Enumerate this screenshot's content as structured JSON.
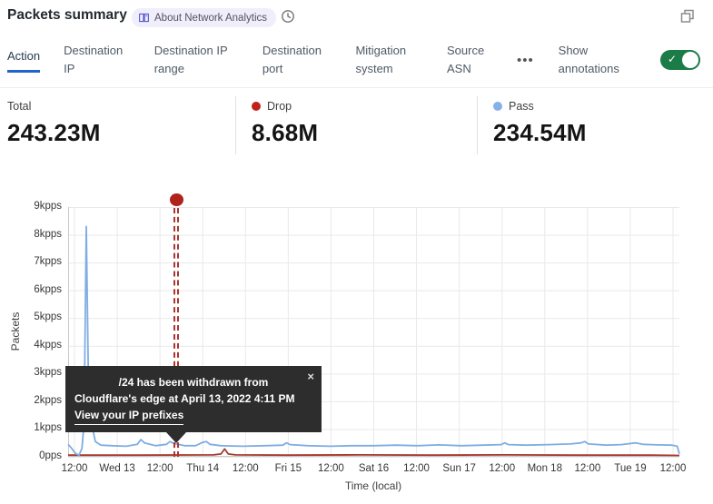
{
  "header": {
    "title": "Packets summary",
    "about_badge_label": "About Network Analytics"
  },
  "tabs": {
    "items": [
      {
        "label": "Action",
        "active": true
      },
      {
        "label": "Destination IP",
        "active": false
      },
      {
        "label": "Destination IP range",
        "active": false
      },
      {
        "label": "Destination port",
        "active": false
      },
      {
        "label": "Mitigation system",
        "active": false
      },
      {
        "label": "Source ASN",
        "active": false
      }
    ],
    "overflow_label": "•••",
    "show_annotations_label": "Show annotations",
    "annotations_toggle_on": true,
    "toggle_color": "#1b7c47",
    "active_underline_color": "#2063c9"
  },
  "stats": [
    {
      "label": "Total",
      "value": "243.23M",
      "color": null
    },
    {
      "label": "Drop",
      "value": "8.68M",
      "color": "#c0211c"
    },
    {
      "label": "Pass",
      "value": "234.54M",
      "color": "#85b1e8"
    }
  ],
  "annotation_tooltip": {
    "line1": "/24 has been withdrawn from",
    "line2": "Cloudflare's edge at April 13, 2022 4:11 PM",
    "link_label": "View your IP prefixes",
    "close_glyph": "×"
  },
  "chart_data": {
    "type": "line",
    "title": "Packets summary",
    "xlabel": "Time (local)",
    "ylabel": "Packets",
    "unit": "kpps",
    "ylim": [
      0,
      9
    ],
    "y_tick_labels": [
      "9kpps",
      "8kpps",
      "7kpps",
      "6kpps",
      "5kpps",
      "4kpps",
      "3kpps",
      "2kpps",
      "1kpps",
      "0pps"
    ],
    "x_tick_labels": [
      "12:00",
      "Wed 13",
      "12:00",
      "Thu 14",
      "12:00",
      "Fri 15",
      "12:00",
      "Sat 16",
      "12:00",
      "Sun 17",
      "12:00",
      "Mon 18",
      "12:00",
      "Tue 19",
      "12:00"
    ],
    "x_range_hours": 168,
    "x_start": "Apr 12 12:00",
    "grid": true,
    "legend_position": "top",
    "annotation": {
      "x_fraction": 0.1775,
      "time": "April 13, 2022 4:11 PM",
      "dot_color": "#b1221b",
      "line_color": "#a93531"
    },
    "series": [
      {
        "name": "Pass",
        "color": "#7fade3",
        "total": "234.54M",
        "points_hours_kpps": [
          [
            0,
            0.45
          ],
          [
            1,
            0.3
          ],
          [
            2,
            0.12
          ],
          [
            3,
            0.06
          ],
          [
            3.8,
            0.3
          ],
          [
            4.4,
            1.2
          ],
          [
            5,
            8.3
          ],
          [
            5.6,
            2.6
          ],
          [
            6,
            3.0
          ],
          [
            6.6,
            1.1
          ],
          [
            7.5,
            0.55
          ],
          [
            9,
            0.42
          ],
          [
            12,
            0.4
          ],
          [
            16,
            0.38
          ],
          [
            19,
            0.45
          ],
          [
            20,
            0.62
          ],
          [
            21,
            0.5
          ],
          [
            24,
            0.4
          ],
          [
            27,
            0.45
          ],
          [
            28,
            0.55
          ],
          [
            29,
            0.48
          ],
          [
            32,
            0.4
          ],
          [
            35,
            0.4
          ],
          [
            37,
            0.52
          ],
          [
            38,
            0.55
          ],
          [
            39,
            0.45
          ],
          [
            42,
            0.4
          ],
          [
            48,
            0.38
          ],
          [
            54,
            0.4
          ],
          [
            59,
            0.42
          ],
          [
            60,
            0.5
          ],
          [
            61,
            0.44
          ],
          [
            66,
            0.4
          ],
          [
            72,
            0.38
          ],
          [
            78,
            0.4
          ],
          [
            84,
            0.4
          ],
          [
            90,
            0.42
          ],
          [
            96,
            0.4
          ],
          [
            102,
            0.43
          ],
          [
            108,
            0.4
          ],
          [
            114,
            0.42
          ],
          [
            119,
            0.44
          ],
          [
            120,
            0.5
          ],
          [
            121,
            0.44
          ],
          [
            126,
            0.42
          ],
          [
            132,
            0.44
          ],
          [
            138,
            0.46
          ],
          [
            141,
            0.5
          ],
          [
            142,
            0.55
          ],
          [
            143,
            0.46
          ],
          [
            148,
            0.42
          ],
          [
            152,
            0.44
          ],
          [
            156,
            0.5
          ],
          [
            158,
            0.45
          ],
          [
            162,
            0.43
          ],
          [
            166,
            0.42
          ],
          [
            167.4,
            0.38
          ],
          [
            168,
            0.1
          ]
        ]
      },
      {
        "name": "Drop",
        "color": "#a5392d",
        "total": "8.68M",
        "points_hours_kpps": [
          [
            0,
            0.06
          ],
          [
            20,
            0.06
          ],
          [
            40,
            0.07
          ],
          [
            42,
            0.1
          ],
          [
            43,
            0.28
          ],
          [
            44,
            0.1
          ],
          [
            46,
            0.07
          ],
          [
            60,
            0.06
          ],
          [
            80,
            0.07
          ],
          [
            100,
            0.06
          ],
          [
            120,
            0.07
          ],
          [
            140,
            0.06
          ],
          [
            160,
            0.06
          ],
          [
            168,
            0.05
          ]
        ]
      }
    ]
  }
}
